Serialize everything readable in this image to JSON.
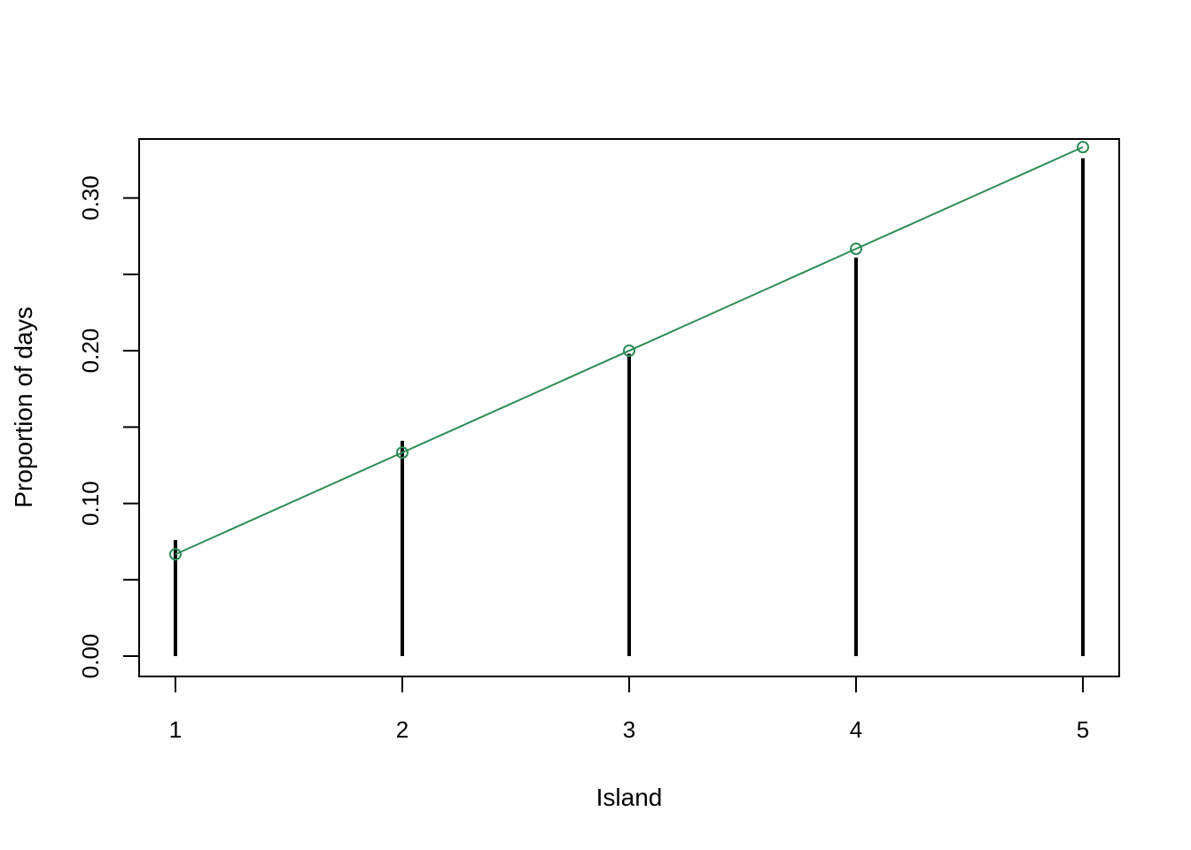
{
  "chart_data": {
    "type": "line",
    "title": "",
    "xlabel": "Island",
    "ylabel": "Proportion of days",
    "xlim": [
      0.84,
      5.16
    ],
    "ylim": [
      -0.0133,
      0.3386
    ],
    "x_ticks": [
      "1",
      "2",
      "3",
      "4",
      "5"
    ],
    "y_ticks": [
      "0.00",
      "0.10",
      "0.20",
      "0.30"
    ],
    "y_tick_values": [
      0,
      0.05,
      0.1,
      0.15,
      0.2,
      0.25,
      0.3
    ],
    "grid": false,
    "series": [
      {
        "type": "histogram-spikes",
        "color": "#000000",
        "x": [
          1,
          2,
          3,
          4,
          5
        ],
        "values": [
          0.076,
          0.141,
          0.198,
          0.261,
          0.326
        ]
      },
      {
        "type": "line-points",
        "color": "#2e8b57",
        "x": [
          1,
          2,
          3,
          4,
          5
        ],
        "values": [
          0.0667,
          0.1333,
          0.2,
          0.2667,
          0.3333
        ]
      }
    ]
  }
}
